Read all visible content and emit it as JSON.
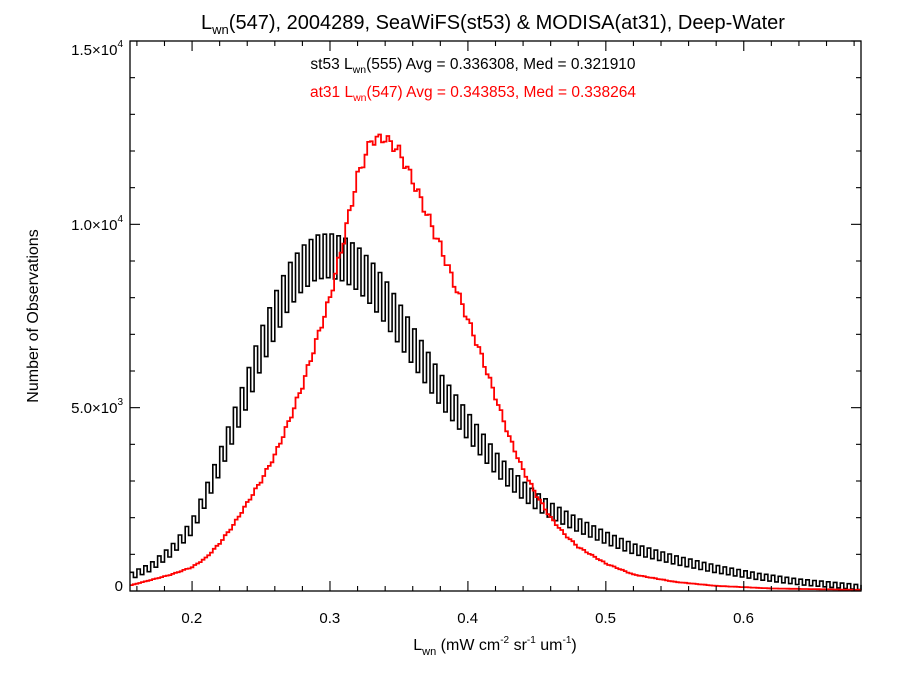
{
  "chart_data": {
    "type": "histogram-step",
    "title": {
      "pre": "L",
      "sub": "wn",
      "post": "(547), 2004289, SeaWiFS(st53) & MODISA(at31), Deep-Water"
    },
    "xlabel": {
      "pre": "L",
      "sub": "wn",
      "mid1": " (mW cm",
      "sup1": "-2",
      "mid2": " sr",
      "sup2": "-1",
      "mid3": " um",
      "sup3": "-1",
      "post": ")"
    },
    "ylabel": "Number of Observations",
    "xlim": [
      0.155,
      0.685
    ],
    "ylim": [
      0,
      15000
    ],
    "x_ticks": [
      {
        "v": 0.2,
        "label": "0.2"
      },
      {
        "v": 0.3,
        "label": "0.3"
      },
      {
        "v": 0.4,
        "label": "0.4"
      },
      {
        "v": 0.5,
        "label": "0.5"
      },
      {
        "v": 0.6,
        "label": "0.6"
      }
    ],
    "y_ticks": [
      {
        "v": 0,
        "label": "0",
        "exp": ""
      },
      {
        "v": 5000,
        "label": "5.0×10",
        "exp": "3"
      },
      {
        "v": 10000,
        "label": "1.0×10",
        "exp": "4"
      },
      {
        "v": 15000,
        "label": "1.5×10",
        "exp": "4"
      }
    ],
    "annotations": [
      {
        "pre": "st53 L",
        "sub": "wn",
        "post": "(555) Avg = 0.336308, Med = 0.321910",
        "color": "#000000"
      },
      {
        "pre": "at31 L",
        "sub": "wn",
        "post": "(547) Avg = 0.343853, Med = 0.338264",
        "color": "#ff0000"
      }
    ],
    "series": [
      {
        "color": "#000000",
        "oscillating": true,
        "profile": [
          [
            0.155,
            400
          ],
          [
            0.17,
            650
          ],
          [
            0.185,
            1100
          ],
          [
            0.2,
            1750
          ],
          [
            0.21,
            2600
          ],
          [
            0.22,
            3500
          ],
          [
            0.23,
            4500
          ],
          [
            0.24,
            5500
          ],
          [
            0.25,
            6600
          ],
          [
            0.26,
            7500
          ],
          [
            0.27,
            8300
          ],
          [
            0.28,
            8800
          ],
          [
            0.29,
            9100
          ],
          [
            0.3,
            9150
          ],
          [
            0.31,
            9050
          ],
          [
            0.32,
            8800
          ],
          [
            0.33,
            8400
          ],
          [
            0.34,
            7900
          ],
          [
            0.35,
            7300
          ],
          [
            0.36,
            6700
          ],
          [
            0.37,
            6100
          ],
          [
            0.38,
            5500
          ],
          [
            0.39,
            5000
          ],
          [
            0.4,
            4500
          ],
          [
            0.41,
            4000
          ],
          [
            0.42,
            3500
          ],
          [
            0.43,
            3100
          ],
          [
            0.44,
            2750
          ],
          [
            0.45,
            2450
          ],
          [
            0.46,
            2200
          ],
          [
            0.48,
            1800
          ],
          [
            0.5,
            1450
          ],
          [
            0.52,
            1150
          ],
          [
            0.55,
            850
          ],
          [
            0.58,
            600
          ],
          [
            0.61,
            400
          ],
          [
            0.64,
            250
          ],
          [
            0.67,
            150
          ],
          [
            0.685,
            100
          ]
        ]
      },
      {
        "color": "#ff0000",
        "oscillating": false,
        "profile": [
          [
            0.155,
            150
          ],
          [
            0.17,
            300
          ],
          [
            0.185,
            450
          ],
          [
            0.2,
            650
          ],
          [
            0.21,
            900
          ],
          [
            0.22,
            1300
          ],
          [
            0.23,
            1800
          ],
          [
            0.24,
            2400
          ],
          [
            0.25,
            3000
          ],
          [
            0.26,
            3700
          ],
          [
            0.27,
            4600
          ],
          [
            0.28,
            5600
          ],
          [
            0.29,
            6800
          ],
          [
            0.3,
            8000
          ],
          [
            0.31,
            9600
          ],
          [
            0.32,
            11300
          ],
          [
            0.33,
            12300
          ],
          [
            0.34,
            12350
          ],
          [
            0.35,
            12000
          ],
          [
            0.36,
            11200
          ],
          [
            0.37,
            10300
          ],
          [
            0.38,
            9400
          ],
          [
            0.39,
            8400
          ],
          [
            0.4,
            7400
          ],
          [
            0.41,
            6400
          ],
          [
            0.42,
            5300
          ],
          [
            0.43,
            4200
          ],
          [
            0.44,
            3300
          ],
          [
            0.45,
            2600
          ],
          [
            0.46,
            2000
          ],
          [
            0.47,
            1550
          ],
          [
            0.48,
            1200
          ],
          [
            0.5,
            750
          ],
          [
            0.52,
            450
          ],
          [
            0.55,
            250
          ],
          [
            0.58,
            140
          ],
          [
            0.62,
            70
          ],
          [
            0.685,
            30
          ]
        ]
      }
    ]
  }
}
